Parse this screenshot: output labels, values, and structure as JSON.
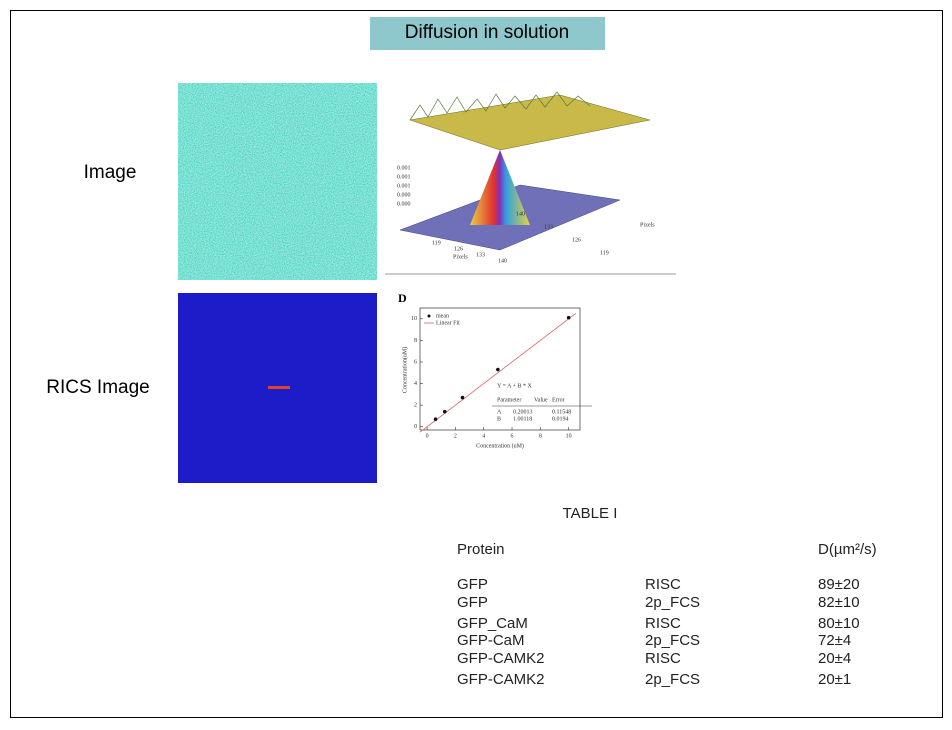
{
  "title": "Diffusion in solution",
  "labels": [
    "Image",
    "RICS Image"
  ],
  "surface_plot": {
    "z_ticks": [
      "0.001",
      "0.001",
      "0.001",
      "0.000",
      "0.000"
    ],
    "x_ticks": [
      "119",
      "126",
      "133",
      "140"
    ],
    "y_ticks": [
      "119",
      "126",
      "133",
      "140"
    ],
    "x_label": "Pixels",
    "y_label": "Pixels"
  },
  "fit_plot": {
    "panel": "D",
    "legend": [
      "mean",
      "Linear Fit"
    ],
    "equation": "Y = A + B * X",
    "param_header": [
      "Parameter",
      "Value",
      "Error"
    ],
    "params": [
      [
        "A",
        "0.20013",
        "0.11548"
      ],
      [
        "B",
        "1.00118",
        "0.0194"
      ]
    ],
    "x_label": "Concentration (uM)",
    "y_label": "Concentration(uM)",
    "x": [
      0.6,
      1.25,
      2.5,
      5,
      10
    ],
    "y": [
      0.7,
      1.4,
      2.7,
      5.3,
      10.1
    ],
    "xlim": [
      -0.5,
      10.8
    ],
    "ylim": [
      -0.3,
      11
    ],
    "xticks": [
      0,
      2,
      4,
      6,
      8,
      10
    ],
    "yticks": [
      0,
      2,
      4,
      6,
      8,
      10
    ]
  },
  "table": {
    "title": "TABLE I",
    "header": {
      "protein": "Protein",
      "d": "D(µm²/s)"
    },
    "rows": [
      [
        "GFP",
        "RISC",
        "89±20"
      ],
      [
        "GFP",
        "2p_FCS",
        "82±10"
      ],
      [
        "GFP_CaM",
        "RISC",
        "80±10"
      ],
      [
        "GFP-CaM",
        "2p_FCS",
        "72±4"
      ],
      [
        "GFP-CAMK2",
        "RISC",
        "20±4"
      ],
      [
        "GFP-CAMK2",
        "2p_FCS",
        "20±1"
      ]
    ]
  }
}
